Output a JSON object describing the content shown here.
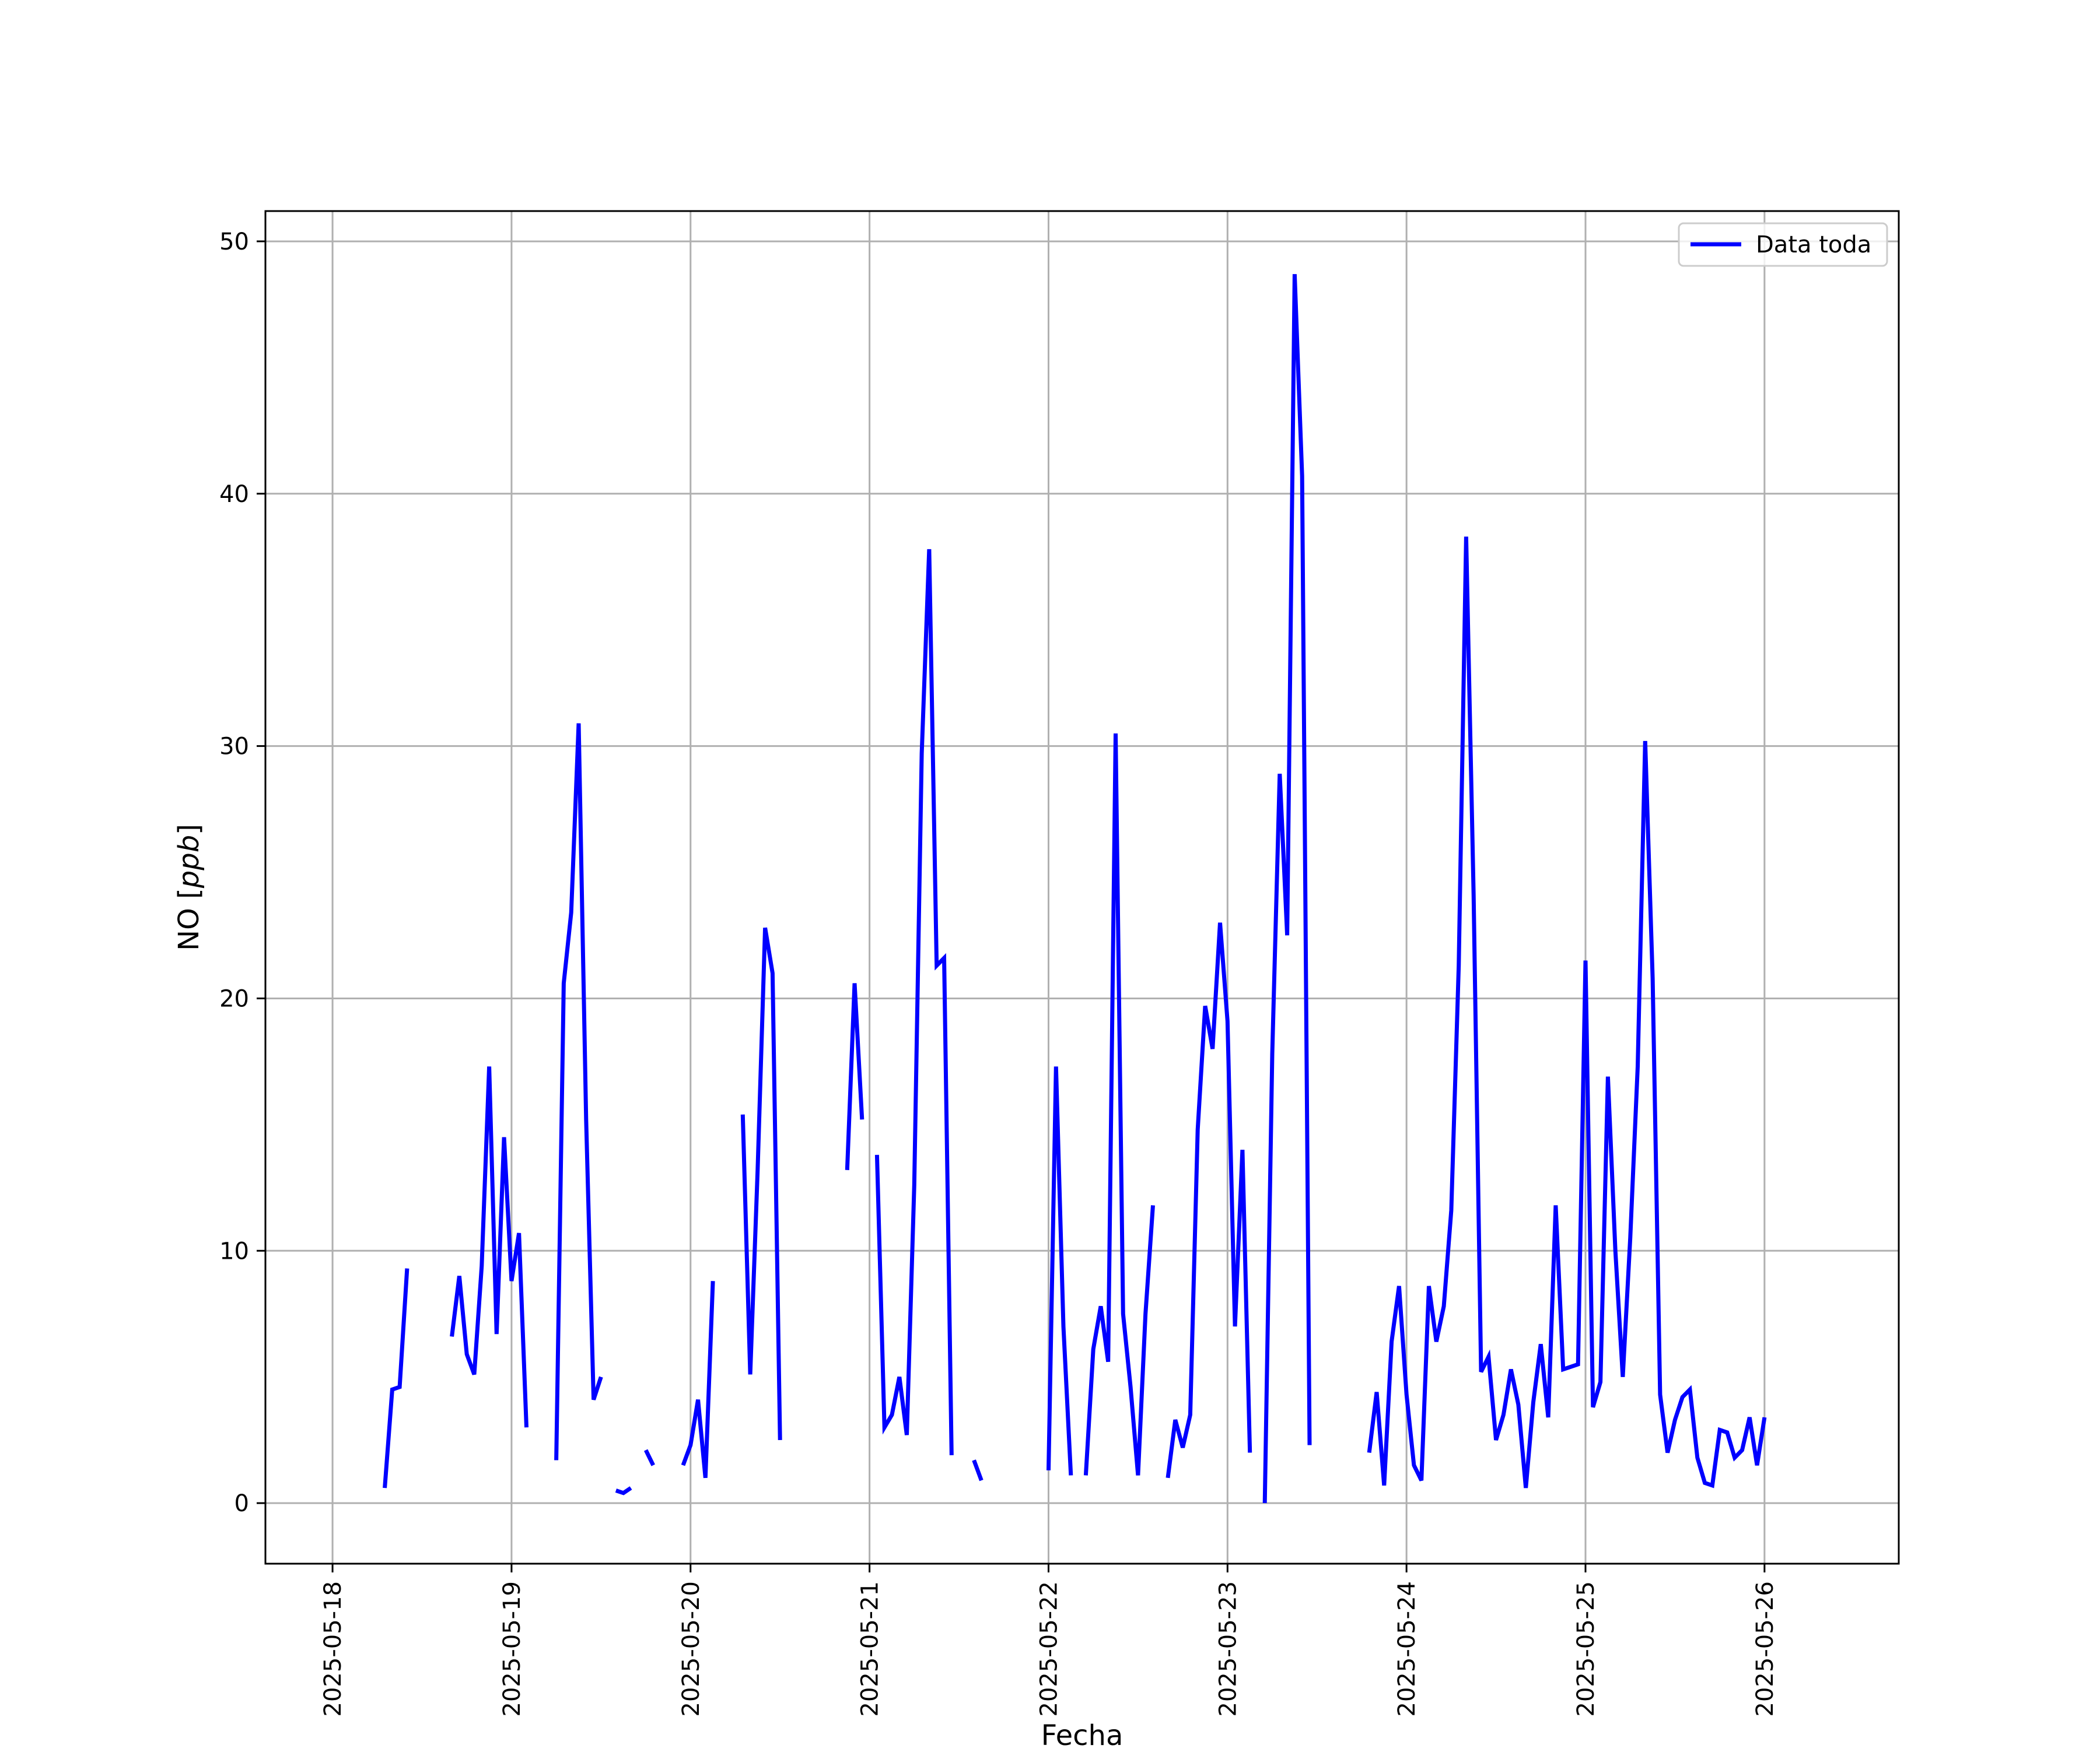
{
  "chart_data": {
    "type": "line",
    "xlabel": "Fecha",
    "ylabel": "NO [ppb]",
    "ylabel_base": "NO [",
    "ylabel_italic": "ppb",
    "ylabel_close": "]",
    "xlim": [
      "2025-05-17 15:00",
      "2025-05-26 18:00"
    ],
    "ylim": [
      -2.4,
      51.2
    ],
    "x_ticks": [
      "2025-05-18",
      "2025-05-19",
      "2025-05-20",
      "2025-05-21",
      "2025-05-22",
      "2025-05-23",
      "2025-05-24",
      "2025-05-25",
      "2025-05-26"
    ],
    "y_ticks": [
      0,
      10,
      20,
      30,
      40,
      50
    ],
    "grid": true,
    "legend_position": "upper right",
    "colors": {
      "series": "#0000ff",
      "grid": "#b0b0b0",
      "frame": "#000000"
    },
    "series": [
      {
        "name": "Data toda",
        "points": [
          [
            "2025-05-18 07:00",
            0.6
          ],
          [
            "2025-05-18 08:00",
            4.5
          ],
          [
            "2025-05-18 09:00",
            4.6
          ],
          [
            "2025-05-18 10:00",
            9.3
          ],
          [
            "2025-05-18 11:00",
            null
          ],
          [
            "2025-05-18 16:00",
            6.6
          ],
          [
            "2025-05-18 17:00",
            9.0
          ],
          [
            "2025-05-18 18:00",
            5.9
          ],
          [
            "2025-05-18 19:00",
            5.1
          ],
          [
            "2025-05-18 20:00",
            9.4
          ],
          [
            "2025-05-18 21:00",
            17.3
          ],
          [
            "2025-05-18 22:00",
            6.7
          ],
          [
            "2025-05-18 23:00",
            14.5
          ],
          [
            "2025-05-19 00:00",
            8.8
          ],
          [
            "2025-05-19 01:00",
            10.7
          ],
          [
            "2025-05-19 02:00",
            3.0
          ],
          [
            "2025-05-19 03:00",
            null
          ],
          [
            "2025-05-19 06:00",
            1.7
          ],
          [
            "2025-05-19 07:00",
            20.6
          ],
          [
            "2025-05-19 08:00",
            23.4
          ],
          [
            "2025-05-19 09:00",
            30.9
          ],
          [
            "2025-05-19 10:00",
            15.2
          ],
          [
            "2025-05-19 11:00",
            4.1
          ],
          [
            "2025-05-19 12:00",
            5.0
          ],
          [
            "2025-05-19 13:00",
            null
          ],
          [
            "2025-05-19 14:00",
            0.5
          ],
          [
            "2025-05-19 15:00",
            0.4
          ],
          [
            "2025-05-19 16:00",
            0.6
          ],
          [
            "2025-05-19 17:00",
            null
          ],
          [
            "2025-05-19 18:00",
            2.1
          ],
          [
            "2025-05-19 19:00",
            1.5
          ],
          [
            "2025-05-19 20:00",
            null
          ],
          [
            "2025-05-19 23:00",
            1.5
          ],
          [
            "2025-05-20 00:00",
            2.3
          ],
          [
            "2025-05-20 01:00",
            4.1
          ],
          [
            "2025-05-20 02:00",
            1.0
          ],
          [
            "2025-05-20 03:00",
            8.8
          ],
          [
            "2025-05-20 04:00",
            null
          ],
          [
            "2025-05-20 07:00",
            15.4
          ],
          [
            "2025-05-20 08:00",
            5.1
          ],
          [
            "2025-05-20 09:00",
            13.2
          ],
          [
            "2025-05-20 10:00",
            22.8
          ],
          [
            "2025-05-20 11:00",
            21.0
          ],
          [
            "2025-05-20 12:00",
            2.5
          ],
          [
            "2025-05-20 13:00",
            null
          ],
          [
            "2025-05-20 21:00",
            13.2
          ],
          [
            "2025-05-20 22:00",
            20.6
          ],
          [
            "2025-05-20 23:00",
            15.2
          ],
          [
            "2025-05-21 00:00",
            null
          ],
          [
            "2025-05-21 01:00",
            13.8
          ],
          [
            "2025-05-21 02:00",
            3.0
          ],
          [
            "2025-05-21 03:00",
            3.5
          ],
          [
            "2025-05-21 04:00",
            5.0
          ],
          [
            "2025-05-21 05:00",
            2.7
          ],
          [
            "2025-05-21 06:00",
            12.6
          ],
          [
            "2025-05-21 07:00",
            29.7
          ],
          [
            "2025-05-21 08:00",
            37.8
          ],
          [
            "2025-05-21 09:00",
            21.3
          ],
          [
            "2025-05-21 10:00",
            21.6
          ],
          [
            "2025-05-21 11:00",
            1.9
          ],
          [
            "2025-05-21 12:00",
            null
          ],
          [
            "2025-05-21 14:00",
            1.7
          ],
          [
            "2025-05-21 15:00",
            0.9
          ],
          [
            "2025-05-21 16:00",
            null
          ],
          [
            "2025-05-22 00:00",
            1.3
          ],
          [
            "2025-05-22 01:00",
            17.3
          ],
          [
            "2025-05-22 02:00",
            7.0
          ],
          [
            "2025-05-22 03:00",
            1.1
          ],
          [
            "2025-05-22 04:00",
            null
          ],
          [
            "2025-05-22 05:00",
            1.1
          ],
          [
            "2025-05-22 06:00",
            6.1
          ],
          [
            "2025-05-22 07:00",
            7.8
          ],
          [
            "2025-05-22 08:00",
            5.6
          ],
          [
            "2025-05-22 09:00",
            30.5
          ],
          [
            "2025-05-22 10:00",
            7.5
          ],
          [
            "2025-05-22 11:00",
            4.6
          ],
          [
            "2025-05-22 12:00",
            1.1
          ],
          [
            "2025-05-22 13:00",
            7.5
          ],
          [
            "2025-05-22 14:00",
            11.8
          ],
          [
            "2025-05-22 15:00",
            null
          ],
          [
            "2025-05-22 16:00",
            1.0
          ],
          [
            "2025-05-22 17:00",
            3.3
          ],
          [
            "2025-05-22 18:00",
            2.2
          ],
          [
            "2025-05-22 19:00",
            3.5
          ],
          [
            "2025-05-22 20:00",
            14.8
          ],
          [
            "2025-05-22 21:00",
            19.7
          ],
          [
            "2025-05-22 22:00",
            18.0
          ],
          [
            "2025-05-22 23:00",
            23.0
          ],
          [
            "2025-05-23 00:00",
            19.1
          ],
          [
            "2025-05-23 01:00",
            7.0
          ],
          [
            "2025-05-23 02:00",
            14.0
          ],
          [
            "2025-05-23 03:00",
            2.0
          ],
          [
            "2025-05-23 04:00",
            null
          ],
          [
            "2025-05-23 05:00",
            0.0
          ],
          [
            "2025-05-23 06:00",
            17.8
          ],
          [
            "2025-05-23 07:00",
            28.9
          ],
          [
            "2025-05-23 08:00",
            22.5
          ],
          [
            "2025-05-23 09:00",
            48.7
          ],
          [
            "2025-05-23 10:00",
            40.7
          ],
          [
            "2025-05-23 11:00",
            2.3
          ],
          [
            "2025-05-23 12:00",
            null
          ],
          [
            "2025-05-23 19:00",
            2.0
          ],
          [
            "2025-05-23 20:00",
            4.4
          ],
          [
            "2025-05-23 21:00",
            0.7
          ],
          [
            "2025-05-23 22:00",
            6.4
          ],
          [
            "2025-05-23 23:00",
            8.6
          ],
          [
            "2025-05-24 00:00",
            4.3
          ],
          [
            "2025-05-24 01:00",
            1.5
          ],
          [
            "2025-05-24 02:00",
            0.9
          ],
          [
            "2025-05-24 03:00",
            8.6
          ],
          [
            "2025-05-24 04:00",
            6.4
          ],
          [
            "2025-05-24 05:00",
            7.8
          ],
          [
            "2025-05-24 06:00",
            11.6
          ],
          [
            "2025-05-24 07:00",
            21.3
          ],
          [
            "2025-05-24 08:00",
            38.3
          ],
          [
            "2025-05-24 09:00",
            24.1
          ],
          [
            "2025-05-24 10:00",
            5.2
          ],
          [
            "2025-05-24 11:00",
            5.8
          ],
          [
            "2025-05-24 12:00",
            2.5
          ],
          [
            "2025-05-24 13:00",
            3.5
          ],
          [
            "2025-05-24 14:00",
            5.3
          ],
          [
            "2025-05-24 15:00",
            3.9
          ],
          [
            "2025-05-24 16:00",
            0.6
          ],
          [
            "2025-05-24 17:00",
            4.0
          ],
          [
            "2025-05-24 18:00",
            6.3
          ],
          [
            "2025-05-24 19:00",
            3.4
          ],
          [
            "2025-05-24 20:00",
            11.8
          ],
          [
            "2025-05-24 21:00",
            5.3
          ],
          [
            "2025-05-24 22:00",
            5.4
          ],
          [
            "2025-05-24 23:00",
            5.5
          ],
          [
            "2025-05-25 00:00",
            21.5
          ],
          [
            "2025-05-25 01:00",
            3.8
          ],
          [
            "2025-05-25 02:00",
            4.8
          ],
          [
            "2025-05-25 03:00",
            16.9
          ],
          [
            "2025-05-25 04:00",
            10.0
          ],
          [
            "2025-05-25 05:00",
            5.0
          ],
          [
            "2025-05-25 06:00",
            10.5
          ],
          [
            "2025-05-25 07:00",
            17.3
          ],
          [
            "2025-05-25 08:00",
            30.2
          ],
          [
            "2025-05-25 09:00",
            20.8
          ],
          [
            "2025-05-25 10:00",
            4.3
          ],
          [
            "2025-05-25 11:00",
            2.0
          ],
          [
            "2025-05-25 12:00",
            3.3
          ],
          [
            "2025-05-25 13:00",
            4.2
          ],
          [
            "2025-05-25 14:00",
            4.5
          ],
          [
            "2025-05-25 15:00",
            1.8
          ],
          [
            "2025-05-25 16:00",
            0.8
          ],
          [
            "2025-05-25 17:00",
            0.7
          ],
          [
            "2025-05-25 18:00",
            2.9
          ],
          [
            "2025-05-25 19:00",
            2.8
          ],
          [
            "2025-05-25 20:00",
            1.8
          ],
          [
            "2025-05-25 21:00",
            2.1
          ],
          [
            "2025-05-25 22:00",
            3.4
          ],
          [
            "2025-05-25 23:00",
            1.5
          ],
          [
            "2025-05-26 00:00",
            3.4
          ]
        ]
      }
    ]
  }
}
